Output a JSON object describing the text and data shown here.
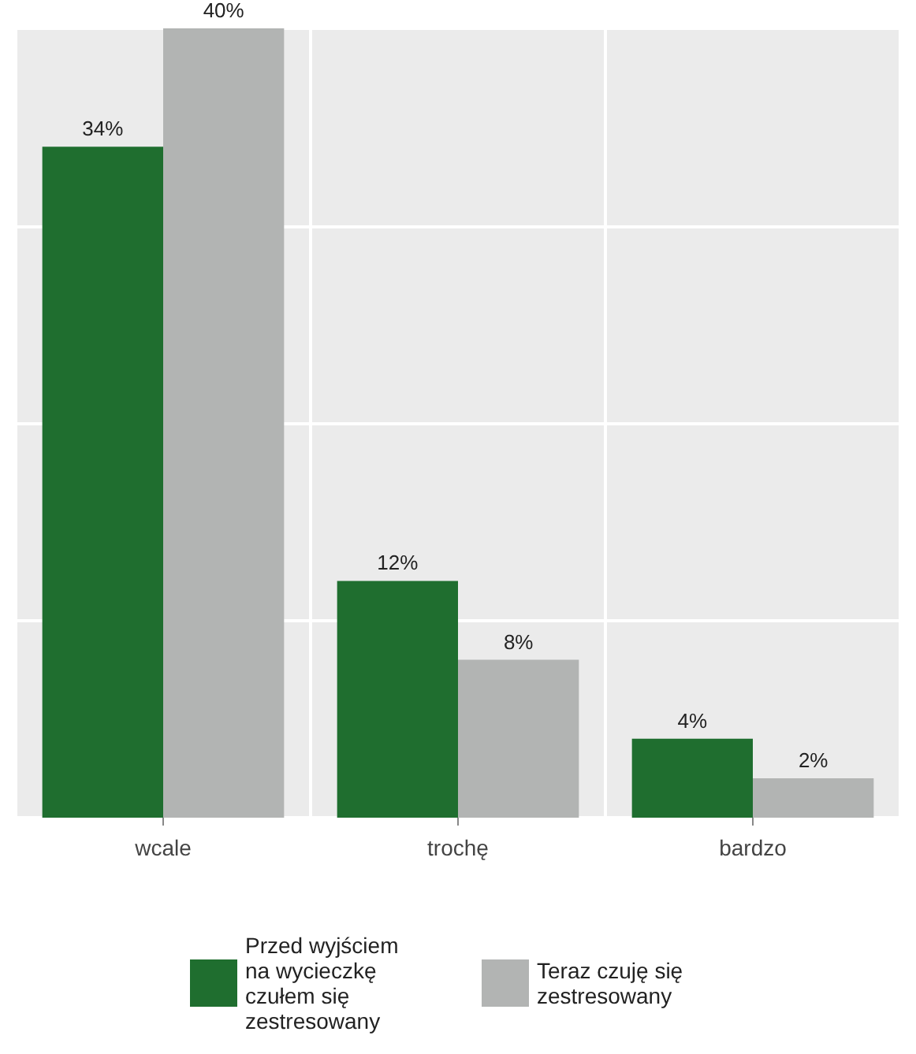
{
  "chart_data": {
    "type": "bar",
    "categories": [
      "wcale",
      "trochę",
      "bardzo"
    ],
    "series": [
      {
        "name": "Przed wyjściem na wycieczkę czułem się zestresowany",
        "color": "#1f6e2f",
        "values": [
          34,
          12,
          4
        ],
        "value_labels": [
          "34%",
          "12%",
          "4%"
        ]
      },
      {
        "name": "Teraz czuję się zestresowany",
        "color": "#b2b4b3",
        "values": [
          40,
          8,
          2
        ],
        "value_labels": [
          "40%",
          "8%",
          "2%"
        ]
      }
    ],
    "grid": true,
    "legend": "bottom"
  }
}
